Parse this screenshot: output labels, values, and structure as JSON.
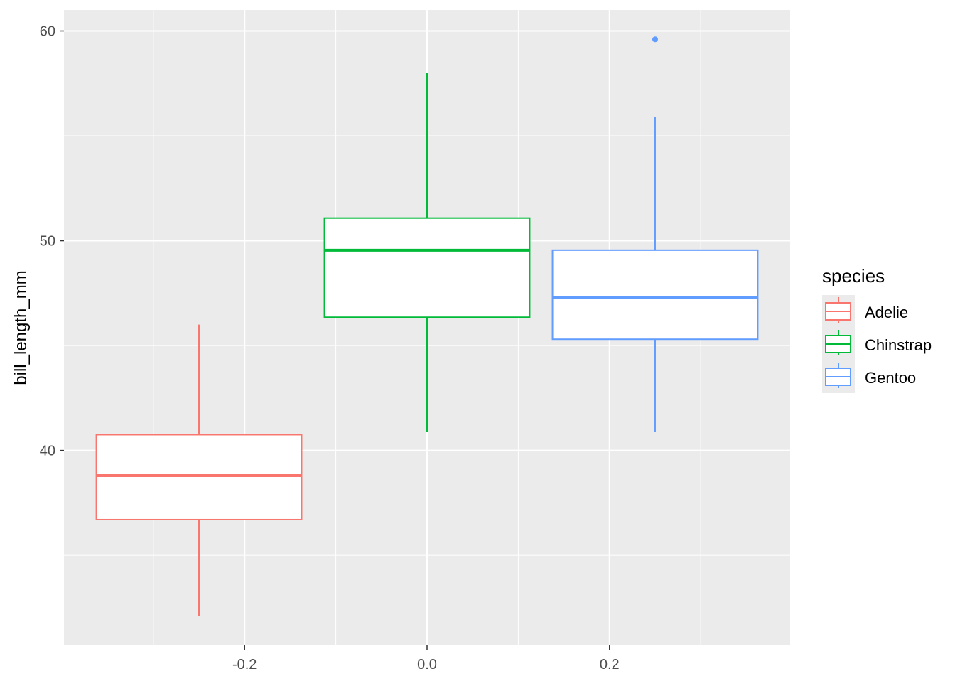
{
  "chart_data": {
    "type": "boxplot",
    "title": "",
    "xlabel": "",
    "ylabel": "bill_length_mm",
    "xlim": [
      -0.398,
      0.398
    ],
    "ylim": [
      30.7,
      61.0
    ],
    "x_ticks": [
      -0.2,
      0.0,
      0.2
    ],
    "x_tick_labels": [
      "-0.2",
      "0.0",
      "0.2"
    ],
    "x_minor_ticks": [
      -0.3,
      -0.1,
      0.1,
      0.3
    ],
    "y_ticks": [
      40,
      50,
      60
    ],
    "y_tick_labels": [
      "40",
      "50",
      "60"
    ],
    "y_minor_ticks": [
      35,
      45,
      55
    ],
    "grid": true,
    "panel_background": "#EBEBEB",
    "legend": {
      "title": "species",
      "position": "right"
    },
    "series": [
      {
        "name": "Adelie",
        "color": "#F8766D",
        "x": -0.25,
        "box_width": 0.225,
        "whisker_low": 32.1,
        "q1": 36.7,
        "median": 38.8,
        "q3": 40.75,
        "whisker_high": 46.0,
        "outliers": []
      },
      {
        "name": "Chinstrap",
        "color": "#00BA38",
        "x": 0.0,
        "box_width": 0.225,
        "whisker_low": 40.9,
        "q1": 46.35,
        "median": 49.55,
        "q3": 51.08,
        "whisker_high": 58.0,
        "outliers": []
      },
      {
        "name": "Gentoo",
        "color": "#619CFF",
        "x": 0.25,
        "box_width": 0.225,
        "whisker_low": 40.9,
        "q1": 45.3,
        "median": 47.3,
        "q3": 49.55,
        "whisker_high": 55.9,
        "outliers": [
          59.6
        ]
      }
    ]
  }
}
